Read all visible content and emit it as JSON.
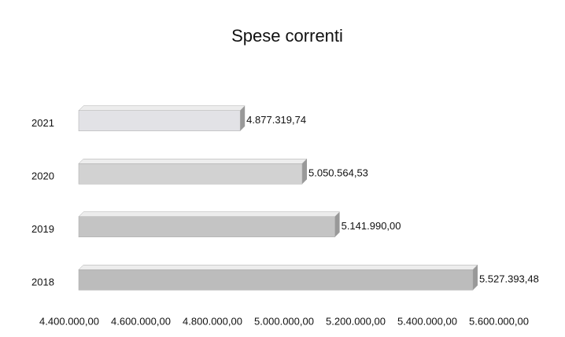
{
  "chart_data": {
    "type": "bar",
    "orientation": "horizontal",
    "title": "Spese correnti",
    "categories": [
      "2021",
      "2020",
      "2019",
      "2018"
    ],
    "values": [
      4877319.74,
      5050564.53,
      5141990.0,
      5527393.48
    ],
    "value_labels": [
      "4.877.319,74",
      "5.050.564,53",
      "5.141.990,00",
      "5.527.393,48"
    ],
    "color": "#c8c8c8",
    "xlim": [
      4400000,
      5600000
    ],
    "xticks": [
      {
        "value": 4400000,
        "label": "4.400.000,00"
      },
      {
        "value": 4600000,
        "label": "4.600.000,00"
      },
      {
        "value": 4800000,
        "label": "4.800.000,00"
      },
      {
        "value": 5000000,
        "label": "5.000.000,00"
      },
      {
        "value": 5200000,
        "label": "5.200.000,00"
      },
      {
        "value": 5400000,
        "label": "5.400.000,00"
      },
      {
        "value": 5600000,
        "label": "5.600.000,00"
      }
    ],
    "grid": false
  }
}
